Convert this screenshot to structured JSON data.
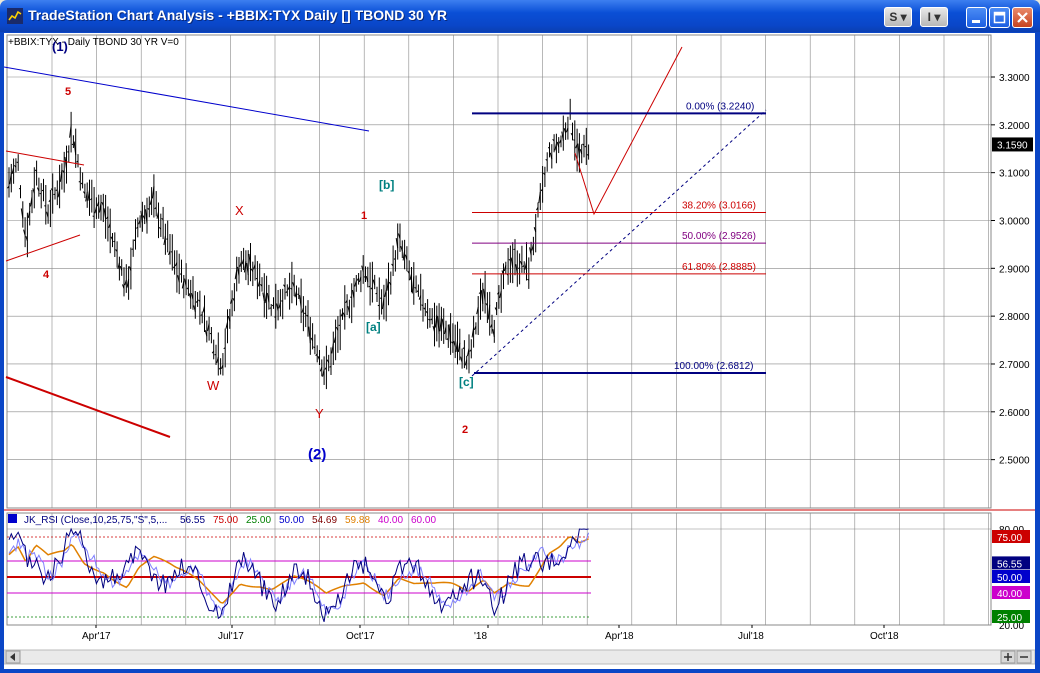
{
  "window": {
    "title": "TradeStation Chart Analysis - +BBIX:TYX Daily [] TBOND 30 YR",
    "s_button": "S",
    "i_button": "I",
    "minimize_icon": "minimize-icon",
    "maximize_icon": "maximize-icon",
    "close_icon": "close-icon"
  },
  "chart": {
    "header": "+BBIX:TYX - Daily  TBOND 30 YR  V=0",
    "last_price": "3.1590",
    "y_ticks": [
      "3.3000",
      "3.2000",
      "3.1000",
      "3.0000",
      "2.9000",
      "2.8000",
      "2.7000",
      "2.6000",
      "2.5000"
    ],
    "x_ticks": [
      "Apr'17",
      "Jul'17",
      "Oct'17",
      "'18",
      "Apr'18",
      "Jul'18",
      "Oct'18"
    ],
    "wave_labels": [
      "(1)",
      "5",
      "4",
      "X",
      "W",
      "Y",
      "(2)",
      "[b]",
      "1",
      "[a]",
      "[c]",
      "2"
    ],
    "fib_levels": [
      {
        "label": "0.00% (3.2240)",
        "value": 3.224,
        "color": "#000080"
      },
      {
        "label": "38.20% (3.0166)",
        "value": 3.0166,
        "color": "#cc0000"
      },
      {
        "label": "50.00% (2.9526)",
        "value": 2.9526,
        "color": "#800080"
      },
      {
        "label": "61.80% (2.8885)",
        "value": 2.8885,
        "color": "#cc0000"
      },
      {
        "label": "100.00% (2.6812)",
        "value": 2.6812,
        "color": "#000080"
      }
    ]
  },
  "indicator": {
    "legend": [
      {
        "text": "JK_RSI (Close,10,25,75,\"S\",5,...",
        "color": "#000080"
      },
      {
        "text": "56.55",
        "color": "#000080"
      },
      {
        "text": "75.00",
        "color": "#cc0000"
      },
      {
        "text": "25.00",
        "color": "#008000"
      },
      {
        "text": "50.00",
        "color": "#0000cc"
      },
      {
        "text": "54.69",
        "color": "#800000"
      },
      {
        "text": "59.88",
        "color": "#e08000"
      },
      {
        "text": "40.00",
        "color": "#cc00cc"
      },
      {
        "text": "60.00",
        "color": "#cc00cc"
      }
    ],
    "y_ticks": [
      "80.00",
      "20.00"
    ],
    "badges": [
      {
        "text": "75.00",
        "bg": "#cc0000",
        "fg": "#ffffff"
      },
      {
        "text": "56.55",
        "bg": "#000080",
        "fg": "#ffffff"
      },
      {
        "text": "50.00",
        "bg": "#0000cc",
        "fg": "#ffffff"
      },
      {
        "text": "40.00",
        "bg": "#cc00cc",
        "fg": "#ffffff"
      },
      {
        "text": "25.00",
        "bg": "#008000",
        "fg": "#ffffff"
      }
    ]
  }
}
